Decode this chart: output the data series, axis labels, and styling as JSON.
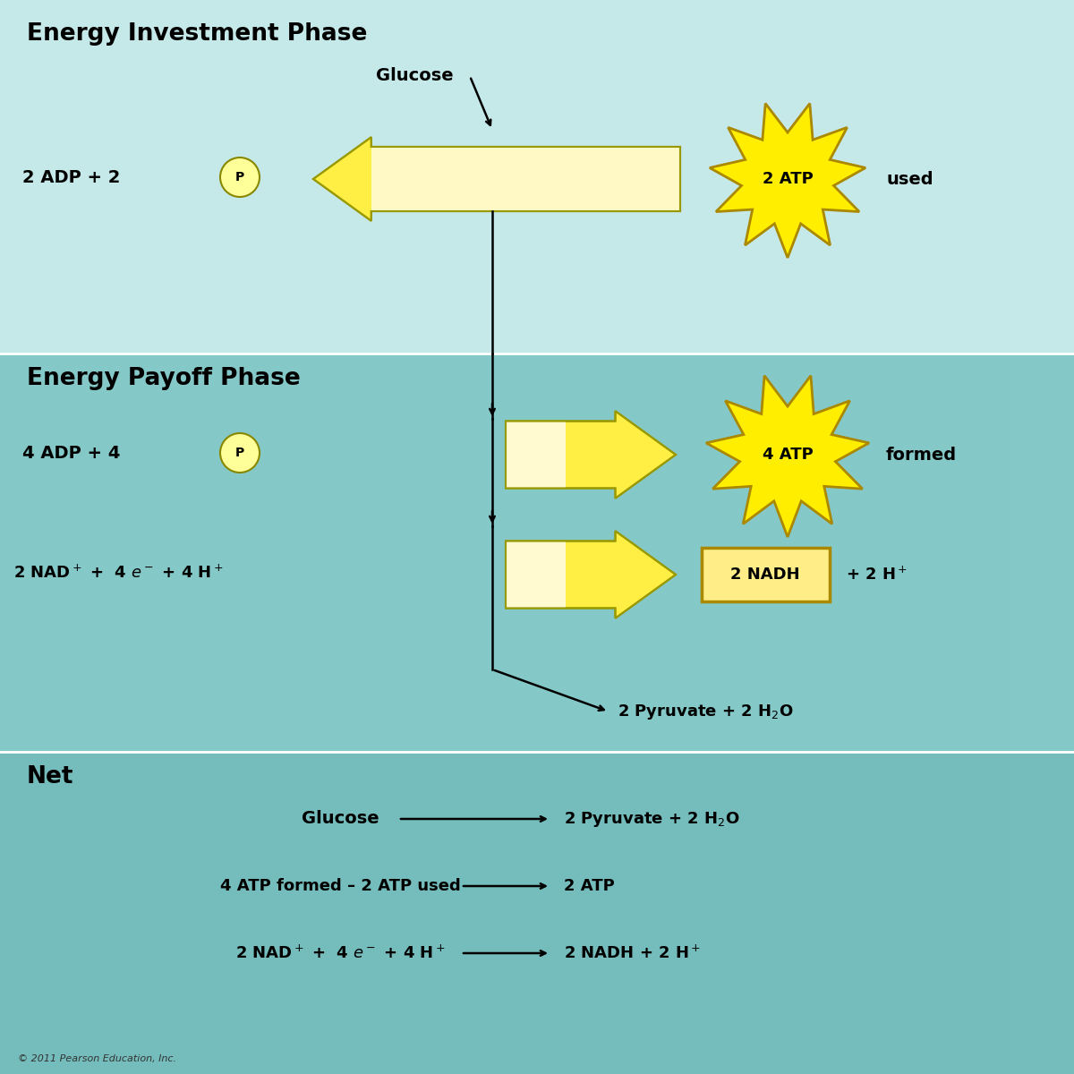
{
  "bg_investment": "#c5e8e8",
  "bg_payoff": "#85c8c8",
  "bg_net": "#75bcbc",
  "burst_yellow": "#ffee00",
  "burst_border": "#aa8800",
  "nadh_box_bg": "#ffee88",
  "nadh_box_border": "#aa8800",
  "p_circle_bg": "#ffff99",
  "p_circle_border": "#888800",
  "title_investment": "Energy Investment Phase",
  "title_payoff": "Energy Payoff Phase",
  "title_net": "Net"
}
